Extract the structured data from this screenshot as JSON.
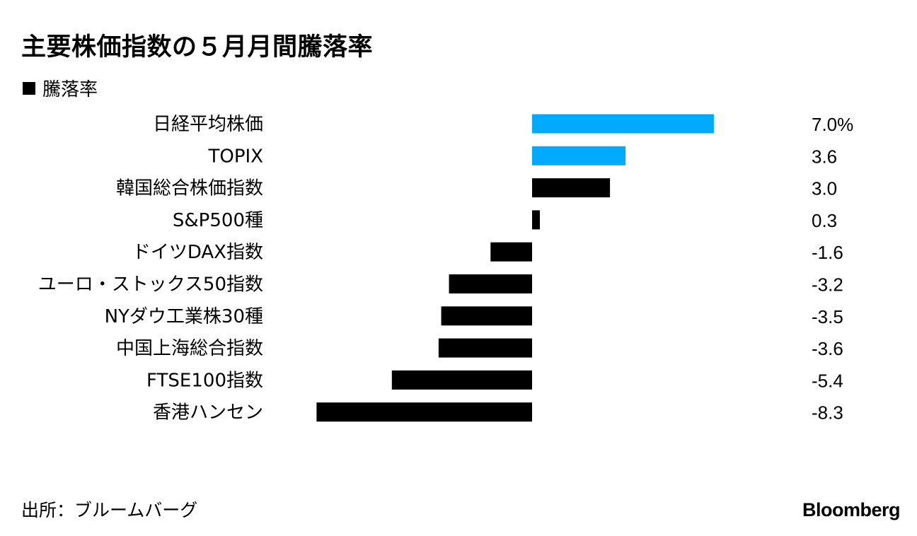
{
  "title": "主要株価指数の５月月間騰落率",
  "legend_label": "騰落率",
  "source": "出所：ブルームバーグ",
  "logo": "Bloomberg",
  "colors": {
    "highlight": "#00AAFF",
    "default": "#000000"
  },
  "chart_data": {
    "type": "bar",
    "orientation": "horizontal",
    "series": [
      {
        "name": "騰落率"
      }
    ],
    "categories": [
      "日経平均株価",
      "TOPIX",
      "韓国総合株価指数",
      "S&P500種",
      "ドイツDAX指数",
      "ユーロ・ストックス50指数",
      "NYダウ工業株30種",
      "中国上海総合指数",
      "FTSE100指数",
      "香港ハンセン"
    ],
    "values": [
      7.0,
      3.6,
      3.0,
      0.3,
      -1.6,
      -3.2,
      -3.5,
      -3.6,
      -5.4,
      -8.3
    ],
    "value_labels": [
      "7.0%",
      "3.6",
      "3.0",
      "0.3",
      "-1.6",
      "-3.2",
      "-3.5",
      "-3.6",
      "-5.4",
      "-8.3"
    ],
    "highlighted": [
      true,
      true,
      false,
      false,
      false,
      false,
      false,
      false,
      false,
      false
    ],
    "xlim": [
      -8.3,
      7.0
    ],
    "grid": false,
    "legend": "top-left"
  }
}
